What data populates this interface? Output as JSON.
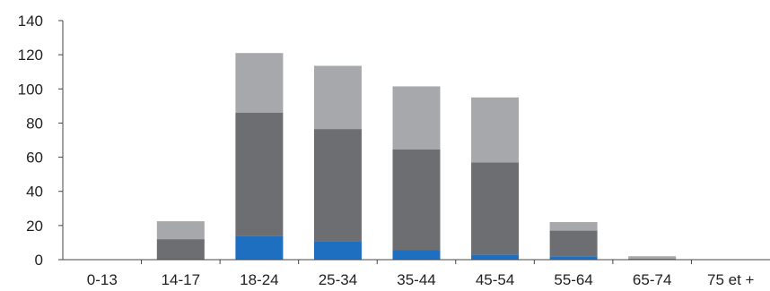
{
  "chart_data": {
    "type": "bar",
    "stacked": true,
    "categories": [
      "0-13",
      "14-17",
      "18-24",
      "25-34",
      "35-44",
      "45-54",
      "55-64",
      "65-74",
      "75 et +"
    ],
    "series": [
      {
        "color": "#1f6fc0",
        "values": [
          0,
          0,
          14,
          10.5,
          5.5,
          3,
          2,
          0,
          0
        ]
      },
      {
        "color": "#6d6e71",
        "values": [
          0,
          12,
          72,
          66,
          59,
          54,
          15,
          0.5,
          0
        ]
      },
      {
        "color": "#a7a8ab",
        "values": [
          0,
          10.5,
          35,
          37,
          37,
          38,
          5,
          1.5,
          0
        ]
      }
    ],
    "ylim": [
      0,
      140
    ],
    "yticks": [
      0,
      20,
      40,
      60,
      80,
      100,
      120,
      140
    ],
    "grid": false,
    "legend": "none"
  }
}
